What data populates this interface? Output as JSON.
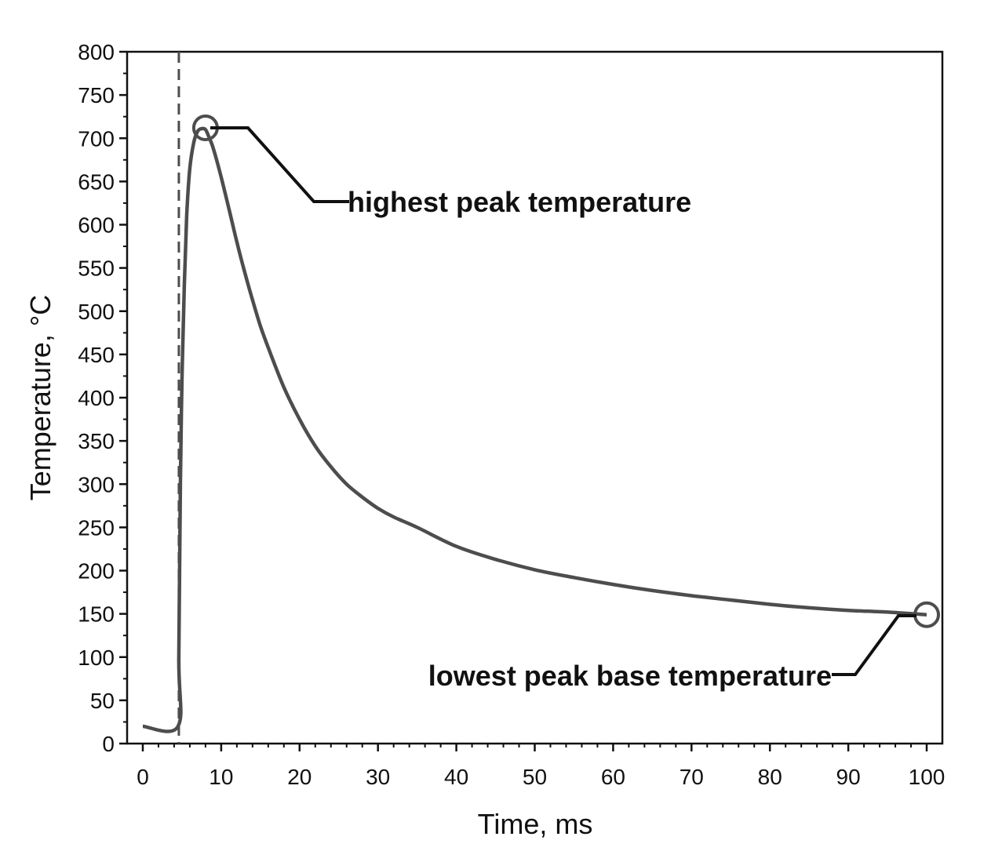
{
  "chart_data": {
    "type": "line",
    "title": "",
    "xlabel": "Time, ms",
    "ylabel": "Temperature, °C",
    "xlim": [
      -2,
      102
    ],
    "ylim": [
      0,
      800
    ],
    "xticks": [
      0,
      10,
      20,
      30,
      40,
      50,
      60,
      70,
      80,
      90,
      100
    ],
    "yticks": [
      0,
      50,
      100,
      150,
      200,
      250,
      300,
      350,
      400,
      450,
      500,
      550,
      600,
      650,
      700,
      750,
      800
    ],
    "grid": false,
    "legend": "none",
    "series": [
      {
        "name": "Temperature",
        "color": "#4d4d4d",
        "x": [
          0,
          4.5,
          4.6,
          4.8,
          5,
          5.3,
          5.6,
          6,
          6.5,
          7,
          7.5,
          8,
          8.5,
          9,
          10,
          11,
          12,
          13,
          14,
          15,
          16,
          18,
          20,
          22,
          24,
          26,
          28,
          30,
          32,
          35,
          40,
          45,
          50,
          55,
          60,
          65,
          70,
          75,
          80,
          85,
          90,
          95,
          100
        ],
        "y": [
          20,
          20,
          100,
          300,
          420,
          530,
          610,
          665,
          695,
          708,
          711,
          710,
          700,
          688,
          655,
          618,
          580,
          545,
          513,
          483,
          458,
          412,
          375,
          344,
          320,
          300,
          285,
          272,
          262,
          250,
          228,
          213,
          201,
          192,
          184,
          177,
          171,
          166,
          161,
          157,
          154,
          152,
          149
        ]
      }
    ],
    "vline": {
      "x": 4.6,
      "style": "dashed",
      "color": "#4d4d4d"
    },
    "markers": [
      {
        "name": "peak-marker",
        "x": 8,
        "y": 712,
        "shape": "circle"
      },
      {
        "name": "base-marker",
        "x": 100,
        "y": 149,
        "shape": "circle"
      }
    ],
    "annotations": [
      {
        "name": "highest-peak-annotation",
        "text": "highest peak temperature",
        "target_x": 8,
        "target_y": 712
      },
      {
        "name": "lowest-base-annotation",
        "text": "lowest peak base temperature",
        "target_x": 100,
        "target_y": 149
      }
    ]
  }
}
